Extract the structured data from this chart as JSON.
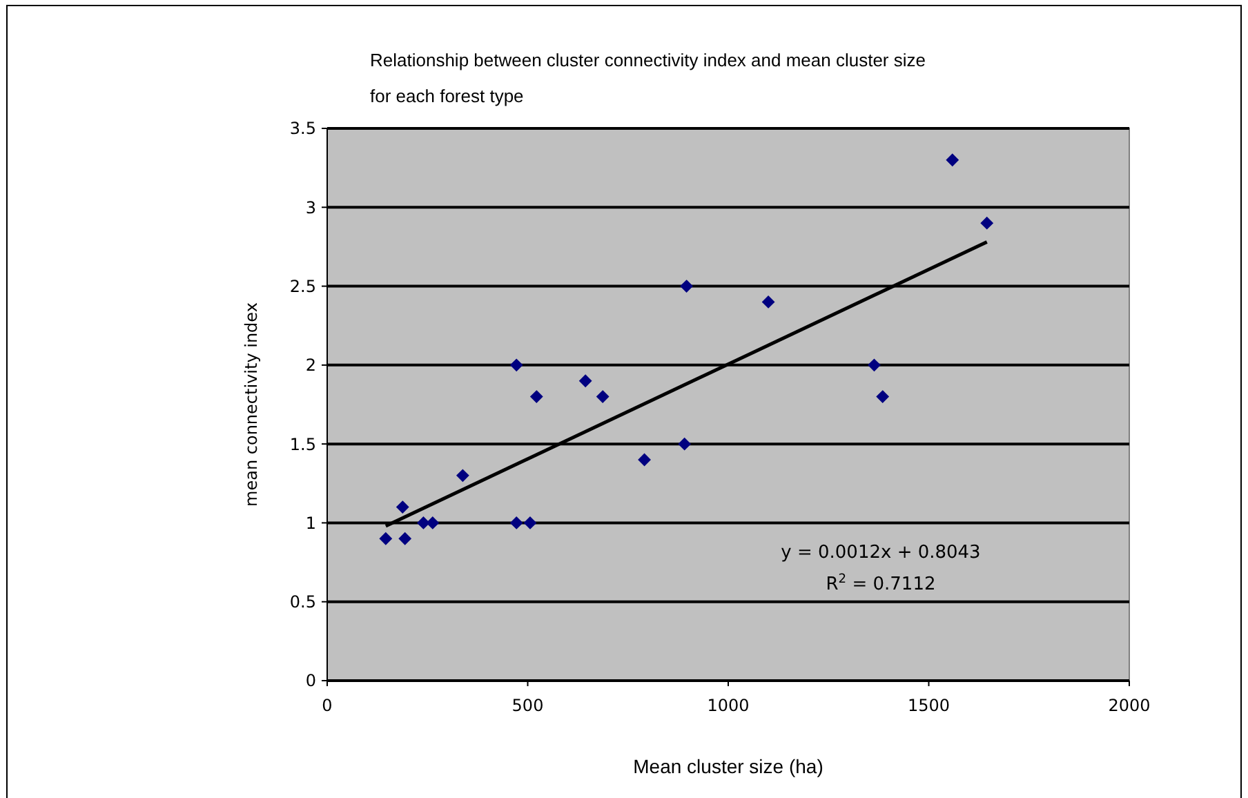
{
  "chart_data": {
    "type": "scatter",
    "title": "Relationship between cluster connectivity index and mean cluster size\nfor each forest type",
    "xlabel": "Mean cluster size (ha)",
    "ylabel": "mean connectivity index",
    "series": [
      {
        "color": "#000080",
        "marker": "diamond",
        "x": [
          146,
          194,
          188,
          240,
          263,
          338,
          472,
          472,
          506,
          522,
          644,
          687,
          791,
          891,
          896,
          1100,
          1364,
          1385,
          1559,
          1645
        ],
        "values": [
          0.9,
          0.9,
          1.1,
          1.0,
          1.0,
          1.3,
          2.0,
          1.0,
          1.0,
          1.8,
          1.9,
          1.8,
          1.4,
          1.5,
          2.5,
          2.4,
          2.0,
          1.8,
          3.3,
          2.9
        ]
      },
      {
        "type": "line",
        "color": "#000000",
        "marker": "none",
        "x": [
          146,
          1645
        ],
        "values": [
          0.98,
          2.78
        ]
      }
    ],
    "xlim": [
      0,
      2000
    ],
    "xticks": [
      0,
      500,
      1000,
      1500,
      2000
    ],
    "ylim": [
      0,
      3.5
    ],
    "yticks": [
      0,
      0.5,
      1,
      1.5,
      2,
      2.5,
      3,
      3.5
    ],
    "grid": "y",
    "annotations": [
      "y = 0.0012x + 0.8043",
      "R$^{2}$ = 0.7112"
    ]
  }
}
